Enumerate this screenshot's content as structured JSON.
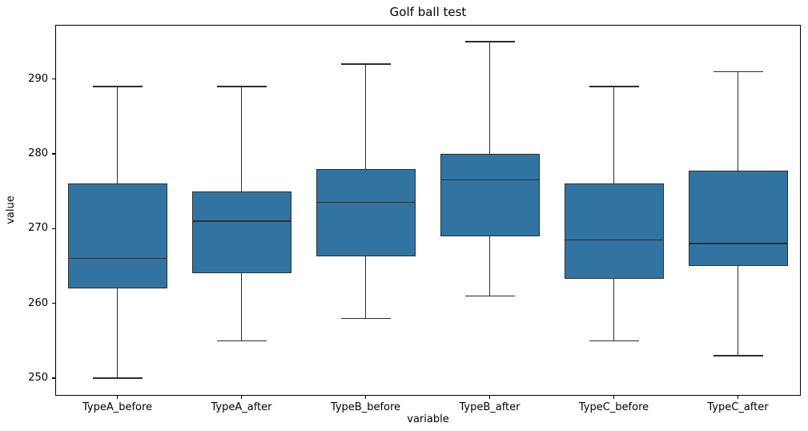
{
  "chart_data": {
    "type": "boxplot",
    "title": "Golf ball test",
    "xlabel": "variable",
    "ylabel": "value",
    "categories": [
      "TypeA_before",
      "TypeA_after",
      "TypeB_before",
      "TypeB_after",
      "TypeC_before",
      "TypeC_after"
    ],
    "series": [
      {
        "name": "TypeA_before",
        "whisker_low": 250,
        "q1": 262,
        "median": 266,
        "q3": 276,
        "whisker_high": 289
      },
      {
        "name": "TypeA_after",
        "whisker_low": 255,
        "q1": 264,
        "median": 271,
        "q3": 275,
        "whisker_high": 289
      },
      {
        "name": "TypeB_before",
        "whisker_low": 258,
        "q1": 266.25,
        "median": 273.5,
        "q3": 278,
        "whisker_high": 292
      },
      {
        "name": "TypeB_after",
        "whisker_low": 261,
        "q1": 269,
        "median": 276.5,
        "q3": 280,
        "whisker_high": 295
      },
      {
        "name": "TypeC_before",
        "whisker_low": 255,
        "q1": 263.25,
        "median": 268.5,
        "q3": 276,
        "whisker_high": 289
      },
      {
        "name": "TypeC_after",
        "whisker_low": 253,
        "q1": 265,
        "median": 268,
        "q3": 277.75,
        "whisker_high": 291
      }
    ],
    "ylim": [
      247.75,
      297.25
    ],
    "yticks": [
      250,
      260,
      270,
      280,
      290
    ],
    "grid": false,
    "legend": false,
    "outliers": [],
    "colors": {
      "box_fill": "#3274A1",
      "line": "#2E2E2E",
      "axis": "#000000",
      "text": "#000000",
      "background": "#FFFFFF"
    }
  }
}
